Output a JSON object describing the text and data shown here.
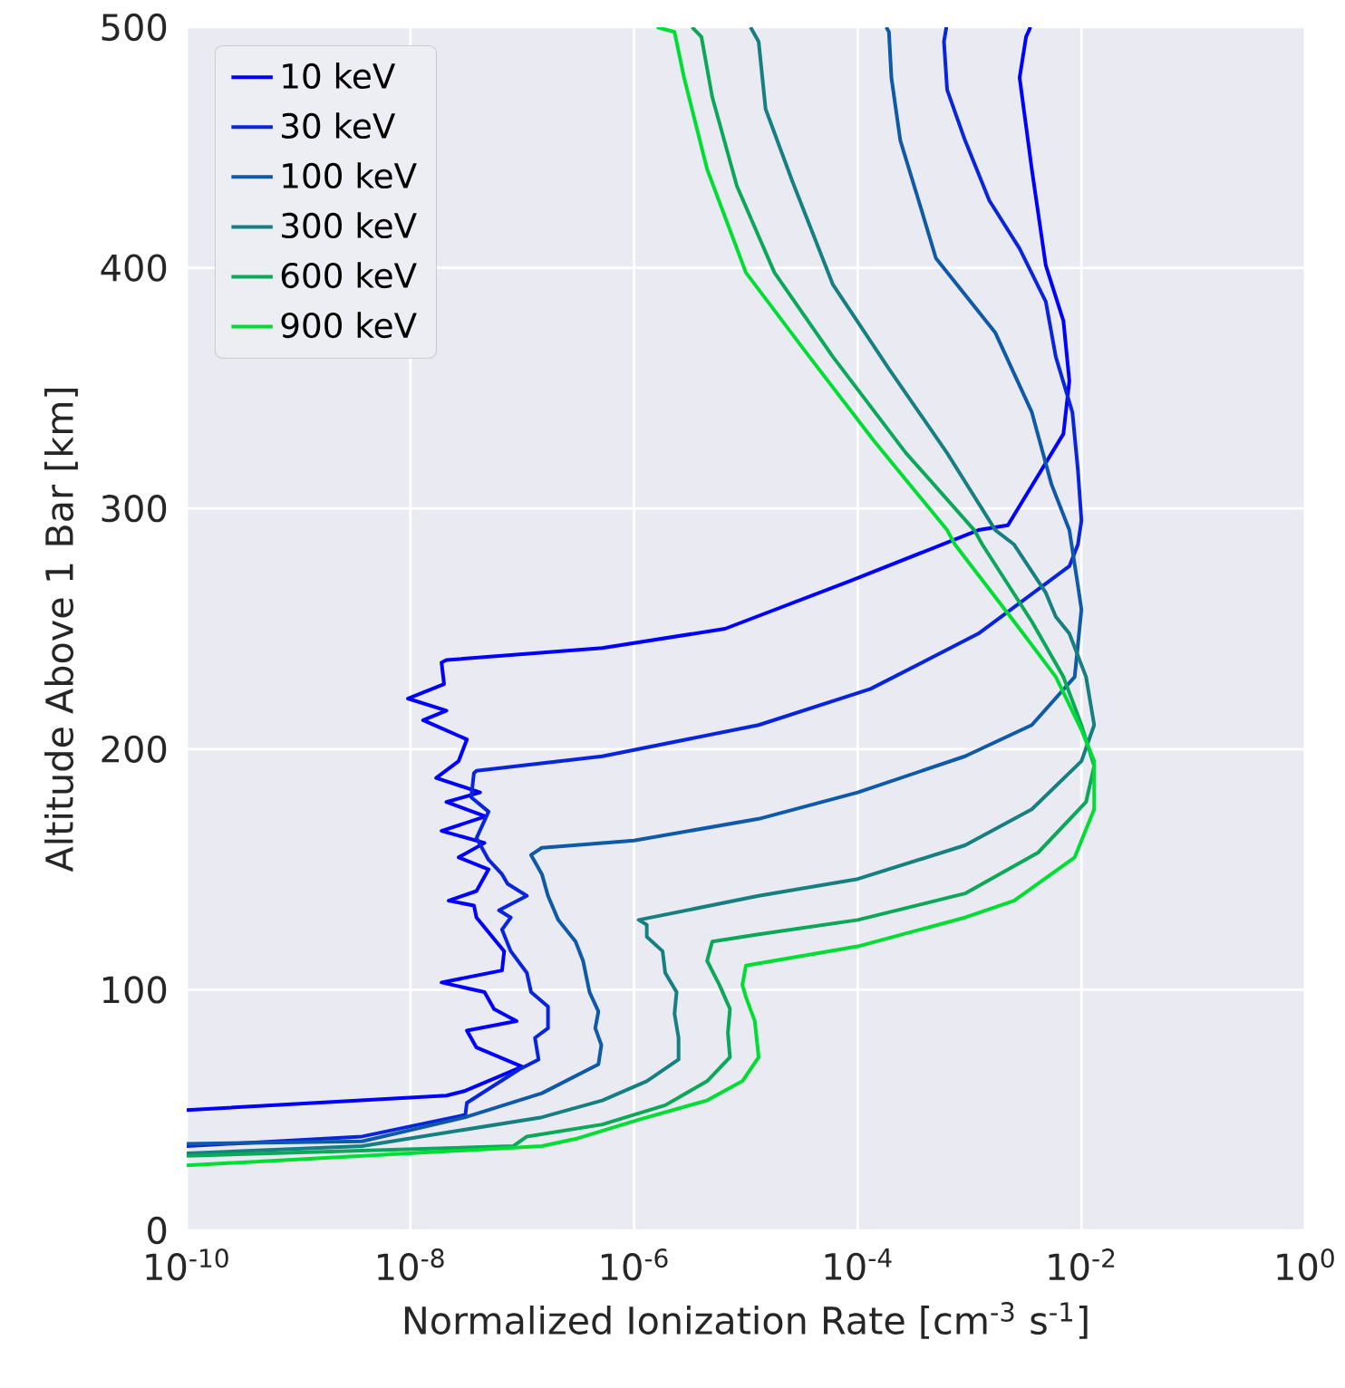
{
  "chart_data": {
    "type": "line",
    "xlabel": "Normalized Ionization Rate [cm$^{-3}$ s$^{-1}$]",
    "ylabel": "Altitude Above 1 Bar [km]",
    "log": "x",
    "grid": true,
    "legend": "top left",
    "marker": "none",
    "line_style": "solid",
    "xlim": [
      1e-10,
      1
    ],
    "ylim": [
      0,
      500
    ],
    "xticks": [
      {
        "value": 1e-10,
        "label": "10$^{-10}$"
      },
      {
        "value": 1e-08,
        "label": "10$^{-8}$"
      },
      {
        "value": 1e-06,
        "label": "10$^{-6}$"
      },
      {
        "value": 0.0001,
        "label": "10$^{-4}$"
      },
      {
        "value": 0.01,
        "label": "10$^{-2}$"
      },
      {
        "value": 1,
        "label": "10$^{0}$"
      }
    ],
    "yticks": [
      0,
      100,
      200,
      300,
      400,
      500
    ],
    "series": [
      {
        "name": "10 keV",
        "color": "#0000ff",
        "x": [
          1e-10,
          2.1e-08,
          3.1e-08,
          1e-07,
          3.9e-08,
          3.2e-08,
          8.9e-08,
          5.6e-08,
          4.6e-08,
          1.9e-08,
          6.6e-08,
          6.9e-08,
          3.9e-08,
          3.7e-08,
          2.2e-08,
          3.9e-08,
          5e-08,
          2.7e-08,
          4.6e-08,
          1.9e-08,
          4.7e-08,
          2.1e-08,
          4.2e-08,
          1.7e-08,
          2.7e-08,
          3.2e-08,
          1.3e-08,
          2.1e-08,
          9.5e-09,
          2e-08,
          1.9e-08,
          2.1e-08,
          5.2e-07,
          6.5e-06,
          8.7e-05,
          0.0012,
          0.0022,
          0.0069,
          0.0078,
          0.0069,
          0.0048,
          0.0036,
          0.0028,
          0.0032,
          0.0035
        ],
        "values": [
          50,
          56,
          58,
          68,
          76,
          83,
          87,
          92,
          99,
          103,
          108,
          116,
          130,
          135,
          137,
          141,
          150,
          155,
          161,
          166,
          172,
          178,
          182,
          188,
          195,
          204,
          212,
          216,
          221,
          227,
          236,
          237,
          242,
          250,
          270,
          291,
          293,
          331,
          353,
          378,
          401,
          441,
          479,
          496,
          500
        ]
      },
      {
        "name": "30 keV",
        "color": "#0825dc",
        "x": [
          1e-10,
          3.7e-09,
          3.1e-08,
          3.2e-08,
          9.5e-08,
          1.4e-07,
          1.3e-07,
          1.7e-07,
          1.7e-07,
          1.2e-07,
          1.1e-07,
          7.9e-08,
          6.6e-08,
          7.9e-08,
          6.2e-08,
          1.1e-07,
          7.4e-08,
          6.6e-08,
          5e-08,
          3.9e-08,
          5e-08,
          3.5e-08,
          3.7e-08,
          3.9e-08,
          5.2e-07,
          1.3e-05,
          0.00013,
          0.0012,
          0.0078,
          0.0093,
          0.01,
          0.0093,
          0.0083,
          0.0059,
          0.0048,
          0.0028,
          0.0015,
          0.00091,
          0.00063,
          0.00059,
          0.00062
        ],
        "values": [
          35,
          39,
          48,
          53,
          67,
          71,
          80,
          84,
          93,
          99,
          107,
          116,
          125,
          130,
          133,
          139,
          144,
          148,
          154,
          163,
          174,
          180,
          190,
          191,
          197,
          210,
          225,
          248,
          276,
          285,
          295,
          316,
          340,
          363,
          386,
          408,
          428,
          453,
          474,
          494,
          500
        ]
      },
      {
        "name": "100 keV",
        "color": "#0e5aa8",
        "x": [
          1e-10,
          3.7e-09,
          3.1e-08,
          1.5e-07,
          4.8e-07,
          5.1e-07,
          4.5e-07,
          4.8e-07,
          4e-07,
          3.5e-07,
          3e-07,
          2.1e-07,
          1.7e-07,
          1.5e-07,
          1.2e-07,
          1.5e-07,
          1e-06,
          1.3e-05,
          0.0001,
          0.00091,
          0.0036,
          0.0087,
          0.01,
          0.0093,
          0.0078,
          0.0054,
          0.0036,
          0.0017,
          0.0005,
          0.00035,
          0.00024,
          0.0002,
          0.00019,
          0.00018
        ],
        "values": [
          36,
          37,
          47,
          57,
          69,
          77,
          84,
          91,
          99,
          112,
          120,
          129,
          139,
          148,
          156,
          159,
          162,
          171,
          182,
          197,
          210,
          230,
          258,
          268,
          291,
          310,
          340,
          373,
          404,
          428,
          453,
          479,
          498,
          500
        ]
      },
      {
        "name": "300 keV",
        "color": "#168080",
        "x": [
          1e-10,
          3.7e-09,
          1.5e-07,
          5.2e-07,
          1.3e-06,
          2.5e-06,
          2.5e-06,
          2.3e-06,
          2.4e-06,
          1.9e-06,
          1.8e-06,
          1.3e-06,
          1.3e-06,
          1.1e-06,
          1.3e-05,
          0.0001,
          0.00091,
          0.0036,
          0.01,
          0.013,
          0.011,
          0.0078,
          0.0059,
          0.0048,
          0.0025,
          0.0017,
          0.00063,
          0.00019,
          6e-05,
          2.6e-05,
          1.5e-05,
          1.3e-05,
          1.1e-05
        ],
        "values": [
          32,
          35,
          47,
          54,
          62,
          71,
          80,
          90,
          99,
          107,
          116,
          122,
          127,
          129,
          139,
          146,
          160,
          175,
          195,
          210,
          230,
          248,
          255,
          265,
          285,
          291,
          323,
          358,
          393,
          436,
          466,
          494,
          500
        ]
      },
      {
        "name": "600 keV",
        "color": "#0aa858",
        "x": [
          1e-10,
          8.3e-08,
          1.1e-07,
          5.2e-07,
          1.9e-06,
          4.5e-06,
          7.2e-06,
          6.9e-06,
          7.2e-06,
          5.8e-06,
          4.5e-06,
          5e-06,
          1.3e-05,
          0.0001,
          0.00091,
          0.0041,
          0.011,
          0.013,
          0.01,
          0.0069,
          0.0036,
          0.0013,
          0.0011,
          0.00027,
          6e-05,
          1.8e-05,
          8.3e-06,
          5e-06,
          4e-06,
          3.3e-06
        ],
        "values": [
          31,
          35,
          39,
          44,
          52,
          62,
          72,
          82,
          92,
          102,
          112,
          120,
          123,
          129,
          140,
          157,
          178,
          193,
          210,
          230,
          253,
          285,
          291,
          323,
          363,
          398,
          434,
          471,
          496,
          500
        ]
      },
      {
        "name": "900 keV",
        "color": "#00dd33",
        "x": [
          1e-10,
          1.5e-07,
          3e-07,
          1.1e-06,
          4.5e-06,
          9.3e-06,
          1.3e-05,
          1.2e-05,
          1e-05,
          9.3e-06,
          1e-05,
          0.0001,
          0.00091,
          0.0025,
          0.0087,
          0.013,
          0.013,
          0.01,
          0.0059,
          0.0028,
          0.00074,
          0.00063,
          0.00014,
          3.7e-05,
          1e-05,
          4.5e-06,
          2.8e-06,
          2.3e-06,
          1.6e-06
        ],
        "values": [
          27,
          35,
          38,
          46,
          54,
          62,
          72,
          87,
          97,
          102,
          110,
          118,
          130,
          137,
          155,
          175,
          195,
          208,
          230,
          250,
          285,
          291,
          328,
          363,
          398,
          441,
          479,
          498,
          500
        ]
      }
    ]
  }
}
